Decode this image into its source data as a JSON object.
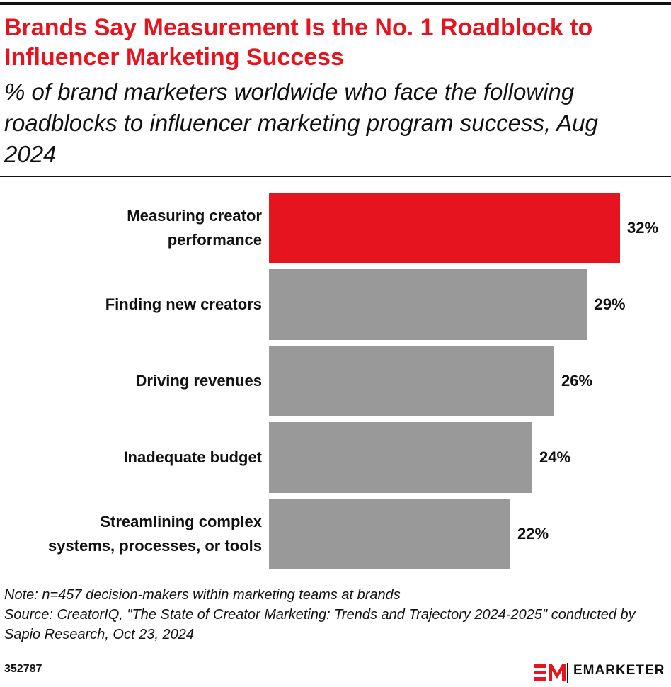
{
  "chart_data": {
    "type": "bar",
    "orientation": "horizontal",
    "title": "Brands Say Measurement Is the No. 1 Roadblock to Influencer Marketing Success",
    "subtitle": "% of brand marketers worldwide who face the following roadblocks to influencer marketing program success, Aug 2024",
    "categories": [
      "Measuring creator performance",
      "Finding new creators",
      "Driving revenues",
      "Inadequate budget",
      "Streamlining complex systems, processes, or tools"
    ],
    "values": [
      32,
      29,
      26,
      24,
      22
    ],
    "value_labels": [
      "32%",
      "29%",
      "26%",
      "24%",
      "22%"
    ],
    "colors": [
      "#e5141f",
      "#999999",
      "#999999",
      "#999999",
      "#999999"
    ],
    "note": "Note: n=457 decision-makers within marketing teams at brands",
    "source": "Source: CreatorIQ, \"The State of Creator Marketing: Trends and Trajectory 2024-2025\" conducted by Sapio Research, Oct 23, 2024",
    "chart_id": "352787",
    "brand": "EMARKETER"
  }
}
